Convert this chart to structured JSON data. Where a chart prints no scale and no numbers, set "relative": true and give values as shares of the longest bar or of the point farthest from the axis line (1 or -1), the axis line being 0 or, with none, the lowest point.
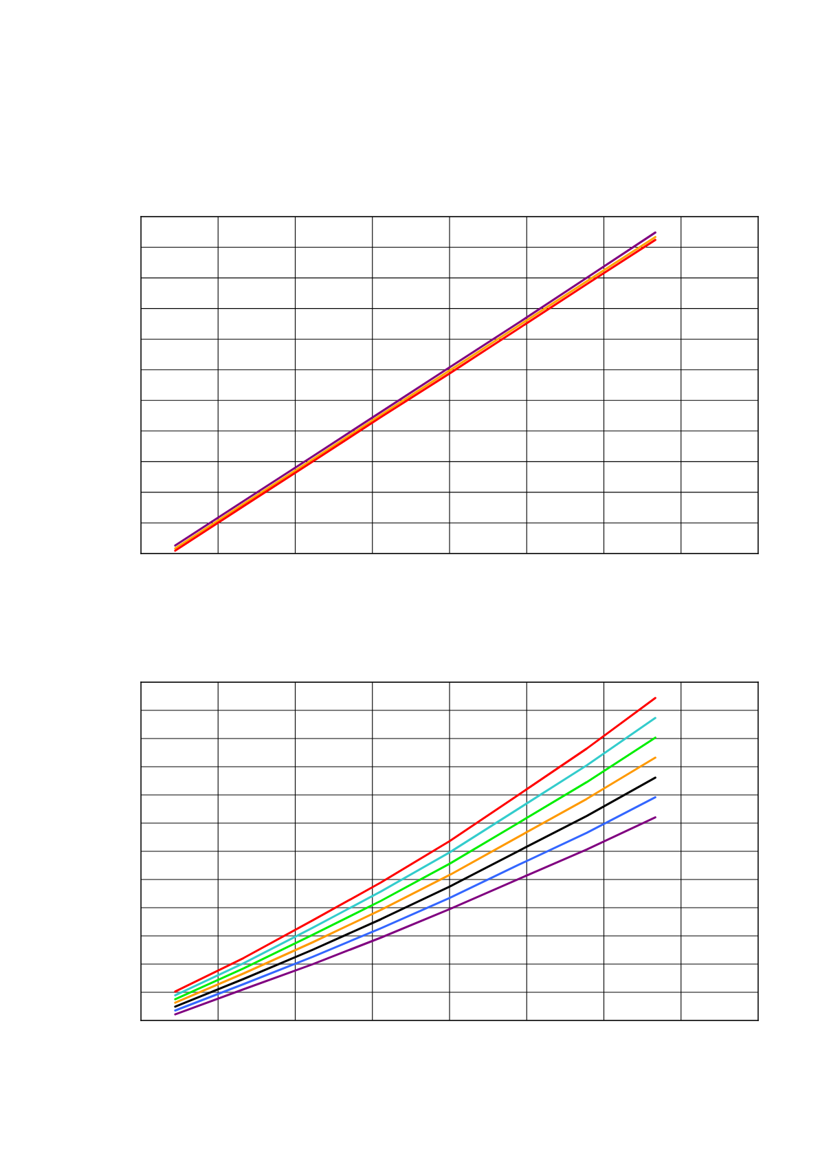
{
  "chart_data": [
    {
      "type": "line",
      "relative": true,
      "grid": true,
      "tick_labels": false,
      "categories": [
        null,
        null,
        null,
        null,
        null,
        null,
        null,
        null,
        null
      ],
      "series": [
        {
          "color": "#800080",
          "values": [
            0.025,
            0.164,
            0.302,
            0.441,
            0.58,
            0.718,
            0.859,
            1,
            null
          ]
        },
        {
          "color": "#ffa500",
          "values": [
            0.016,
            0.155,
            0.293,
            0.432,
            0.57,
            0.709,
            0.848,
            0.986,
            null
          ]
        },
        {
          "color": "#ff0000",
          "values": [
            0.009,
            0.148,
            0.286,
            0.425,
            0.561,
            0.7,
            0.839,
            0.977,
            null
          ]
        }
      ]
    },
    {
      "type": "line",
      "relative": true,
      "grid": true,
      "tick_labels": false,
      "categories": [
        null,
        null,
        null,
        null,
        null,
        null,
        null,
        null,
        null
      ],
      "series": [
        {
          "color": "#ff0000",
          "values": [
            0.09,
            0.194,
            0.31,
            0.428,
            0.556,
            0.699,
            0.843,
            1,
            null
          ]
        },
        {
          "color": "#33cccc",
          "values": [
            0.078,
            0.178,
            0.287,
            0.4,
            0.521,
            0.656,
            0.791,
            0.938,
            null
          ]
        },
        {
          "color": "#00ee00",
          "values": [
            0.066,
            0.162,
            0.265,
            0.371,
            0.486,
            0.612,
            0.739,
            0.877,
            null
          ]
        },
        {
          "color": "#ff9900",
          "values": [
            0.055,
            0.146,
            0.242,
            0.343,
            0.451,
            0.569,
            0.687,
            0.815,
            null
          ]
        },
        {
          "color": "#000000",
          "values": [
            0.043,
            0.129,
            0.219,
            0.314,
            0.415,
            0.525,
            0.634,
            0.753,
            null
          ]
        },
        {
          "color": "#3366ff",
          "values": [
            0.031,
            0.113,
            0.197,
            0.286,
            0.38,
            0.482,
            0.582,
            0.692,
            null
          ]
        },
        {
          "color": "#800080",
          "values": [
            0.019,
            0.097,
            0.174,
            0.257,
            0.345,
            0.438,
            0.53,
            0.63,
            null
          ]
        }
      ]
    }
  ]
}
